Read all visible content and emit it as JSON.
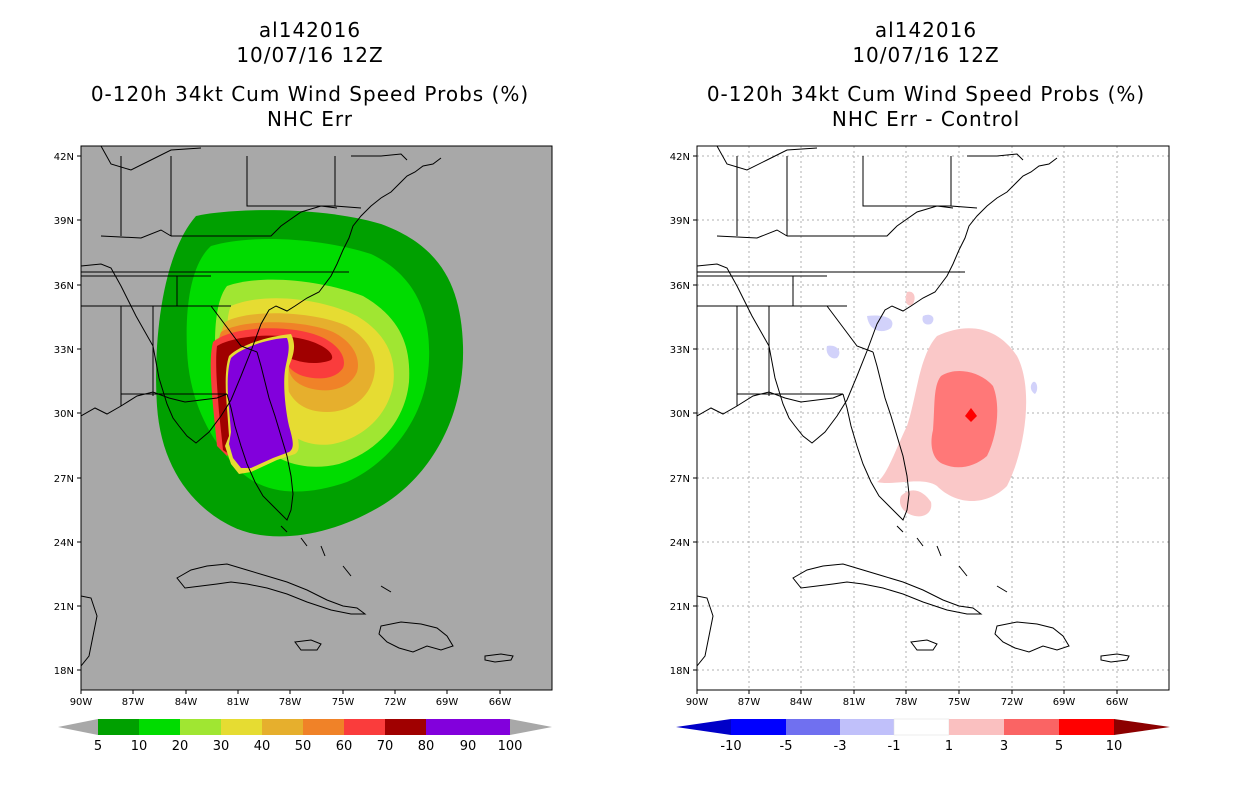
{
  "colors": {
    "land_gray": "#a8a8a8",
    "prob_levels": [
      "#00a000",
      "#00dc00",
      "#a0e632",
      "#e6dc32",
      "#e6af2d",
      "#f08228",
      "#fa3c3c",
      "#a00000",
      "#8200dc"
    ],
    "diff_levels": [
      "#0000c8",
      "#5a5af0",
      "#a0a0ff",
      "#d2d2fa",
      "#ffffff",
      "#fac8c8",
      "#ff7878",
      "#ff0000",
      "#960000"
    ]
  },
  "left": {
    "storm_id": "al142016",
    "date": "10/07/16 12Z",
    "title": "0-120h 34kt Cum Wind Speed Probs (%)",
    "subtitle": "NHC Err",
    "colorbar_labels": [
      "5",
      "10",
      "20",
      "30",
      "40",
      "50",
      "60",
      "70",
      "80",
      "90",
      "100"
    ]
  },
  "right": {
    "storm_id": "al142016",
    "date": "10/07/16 12Z",
    "title": "0-120h 34kt Cum Wind Speed Probs (%)",
    "subtitle": "NHC Err - Control",
    "colorbar_labels": [
      "-10",
      "-5",
      "-3",
      "-1",
      "1",
      "3",
      "5",
      "10"
    ]
  },
  "axes": {
    "lat_labels": [
      "42N",
      "39N",
      "36N",
      "33N",
      "30N",
      "27N",
      "24N",
      "21N",
      "18N"
    ],
    "lon_labels": [
      "90W",
      "87W",
      "84W",
      "81W",
      "78W",
      "75W",
      "72W",
      "69W",
      "66W"
    ]
  }
}
